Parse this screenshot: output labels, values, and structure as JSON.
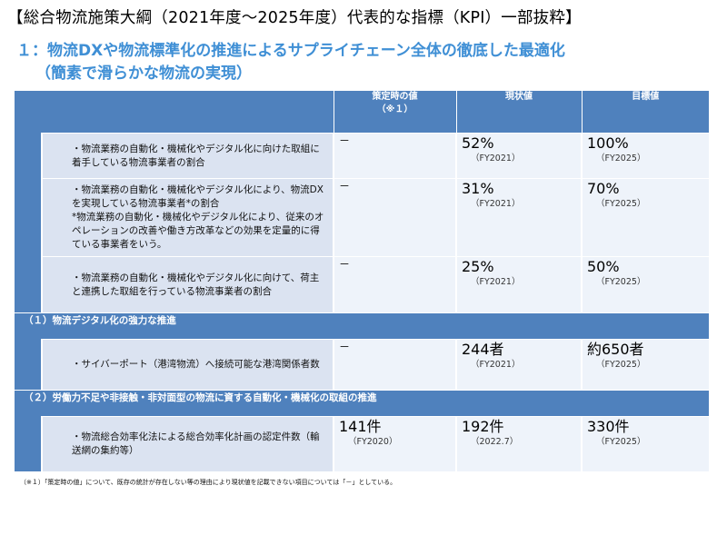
{
  "page_title": "【総合物流施策大綱（2021年度～2025年度）代表的な指標（KPI）一部抜粋】",
  "section": {
    "line1": "１：物流DXや物流標準化の推進によるサプライチェーン全体の徹底した最適化",
    "line2": "（簡素で滑らかな物流の実現）"
  },
  "table": {
    "headers": {
      "col_initial_line1": "策定時の値",
      "col_initial_line2": "（※１）",
      "col_current": "現状値",
      "col_target": "目標値"
    },
    "rows": [
      {
        "item": "・物流業務の自動化・機械化やデジタル化に向けた取組に着手している物流事業者の割合",
        "initial": "－",
        "initial_sub": "",
        "current": "52%",
        "current_sub": "（FY2021）",
        "target": "100%",
        "target_sub": "（FY2025）"
      },
      {
        "item": "・物流業務の自動化・機械化やデジタル化により、物流DXを実現している物流事業者*の割合",
        "item_note": "*物流業務の自動化・機械化やデジタル化により、従来のオペレーションの改善や働き方改革などの効果を定量的に得ている事業者をいう。",
        "initial": "－",
        "initial_sub": "",
        "current": "31%",
        "current_sub": "（FY2021）",
        "target": "70%",
        "target_sub": "（FY2025）"
      },
      {
        "item": "・物流業務の自動化・機械化やデジタル化に向けて、荷主と連携した取組を行っている物流事業者の割合",
        "initial": "－",
        "initial_sub": "",
        "current": "25%",
        "current_sub": "（FY2021）",
        "target": "50%",
        "target_sub": "（FY2025）"
      }
    ],
    "category1": "（１）物流デジタル化の強力な推進",
    "row4": {
      "item": "・サイバーポート（港湾物流）へ接続可能な港湾関係者数",
      "initial": "－",
      "current": "244者",
      "current_sub": "（FY2021）",
      "target": "約650者",
      "target_sub": "（FY2025）"
    },
    "category2": "（２）労働力不足や非接触・非対面型の物流に資する自動化・機械化の取組の推進",
    "row5": {
      "item": "・物流総合効率化法による総合効率化計画の認定件数（輸送網の集約等）",
      "initial": "141件",
      "initial_sub": "（FY2020）",
      "current": "192件",
      "current_sub": "（2022.7）",
      "target": "330件",
      "target_sub": "（FY2025）"
    }
  },
  "footnote": "（※１）「策定時の値」について、既存の統計が存在しない等の理由により現状値を記載できない項目については「－」としている。",
  "colors": {
    "header_blue": "#4f81bd",
    "title_blue": "#3f8fd5",
    "cell_light": "#dbe3f1"
  }
}
